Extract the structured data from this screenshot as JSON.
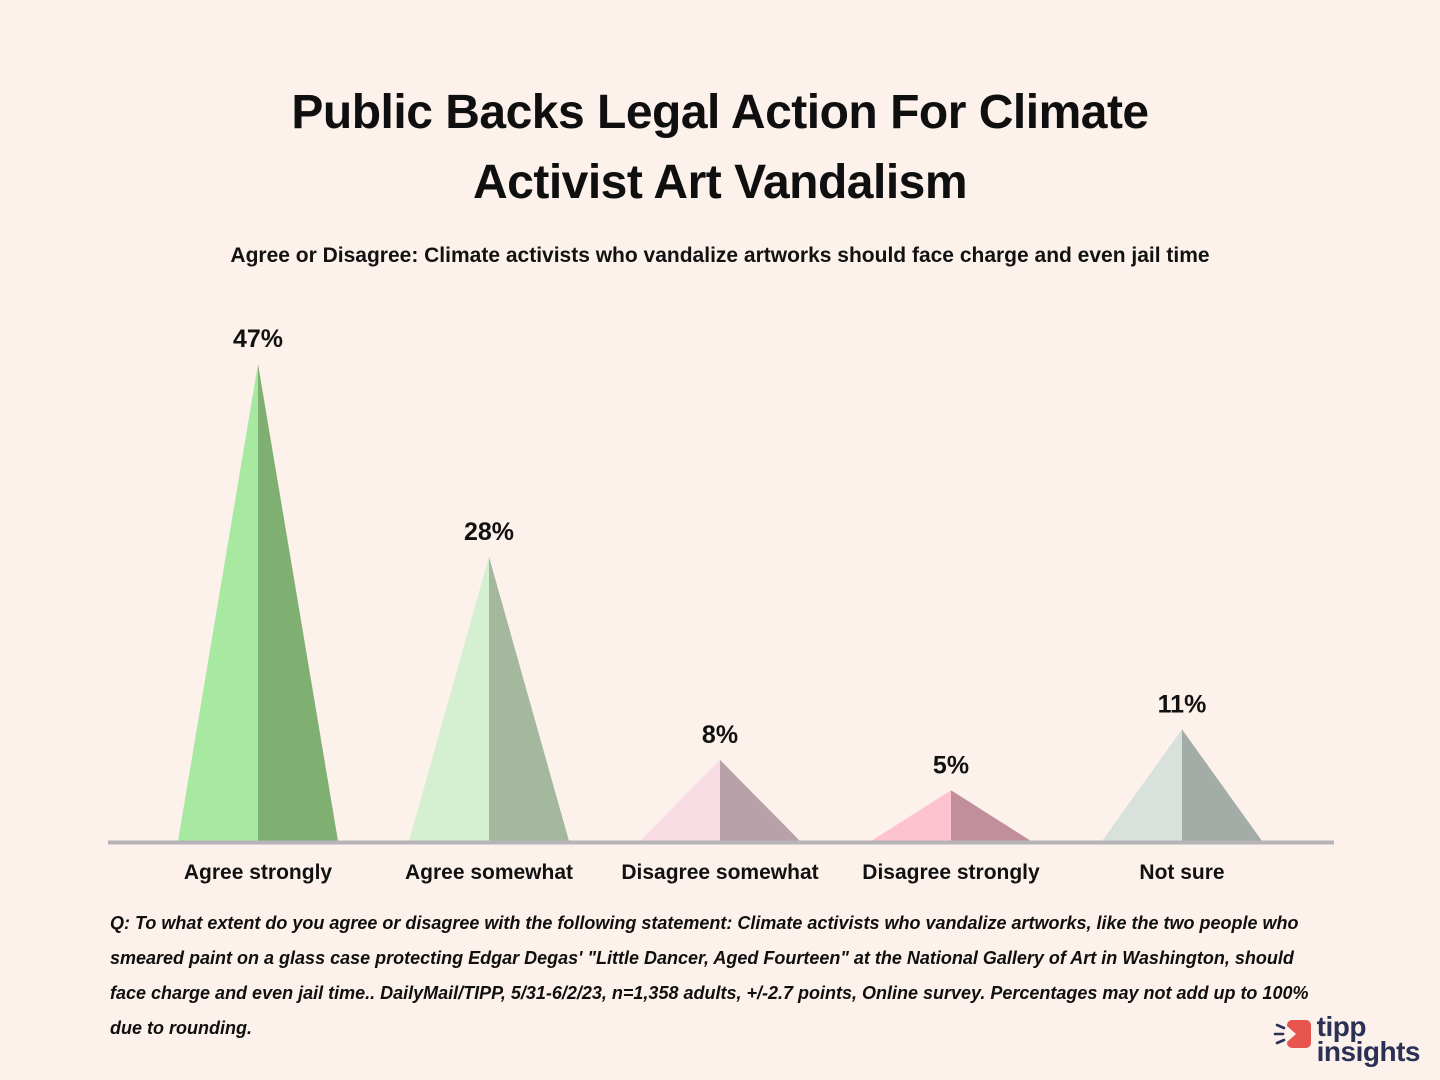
{
  "page": {
    "background": "#fcf1eb",
    "text_color": "#111111"
  },
  "header": {
    "title_line1": "Public Backs Legal Action For Climate",
    "title_line2": "Activist Art Vandalism",
    "subtitle": "Agree or Disagree: Climate activists who vandalize artworks should face charge and even jail time"
  },
  "chart_data": {
    "type": "bar",
    "variant": "triangle_peak_bars",
    "title": "Public Backs Legal Action For Climate Activist Art Vandalism",
    "xlabel": "",
    "ylabel": "",
    "ylim": [
      0,
      50
    ],
    "grid": false,
    "legend_position": "none",
    "categories": [
      "Agree strongly",
      "Agree somewhat",
      "Disagree somewhat",
      "Disagree strongly",
      "Not sure"
    ],
    "values": [
      47,
      28,
      8,
      5,
      11
    ],
    "value_labels": [
      "47%",
      "28%",
      "8%",
      "5%",
      "11%"
    ],
    "triangle_colors": [
      {
        "left": "#a8e9a1",
        "right": "#7fb072"
      },
      {
        "left": "#d5f0d1",
        "right": "#a4b89d"
      },
      {
        "left": "#f8dbe3",
        "right": "#b9a1aa"
      },
      {
        "left": "#ffc2d1",
        "right": "#c18f9b"
      },
      {
        "left": "#d8e1db",
        "right": "#a3aca6"
      }
    ],
    "axis_color": "#b6b4b8",
    "label_color": "#111111"
  },
  "footer": {
    "note": "Q: To what extent do you agree or disagree with the following statement: Climate activists who vandalize artworks, like the two people who smeared paint on a glass case protecting Edgar Degas' \"Little Dancer, Aged Fourteen\" at the National Gallery of Art in Washington, should face charge and even jail time.. DailyMail/TIPP, 5/31-6/2/23, n=1,358 adults, +/-2.7 points, Online survey. Percentages may not add up to 100% due to rounding."
  },
  "logo": {
    "line1": "tipp",
    "line2": "insights",
    "text_color": "#2b3154",
    "icon_color": "#e8554e"
  }
}
